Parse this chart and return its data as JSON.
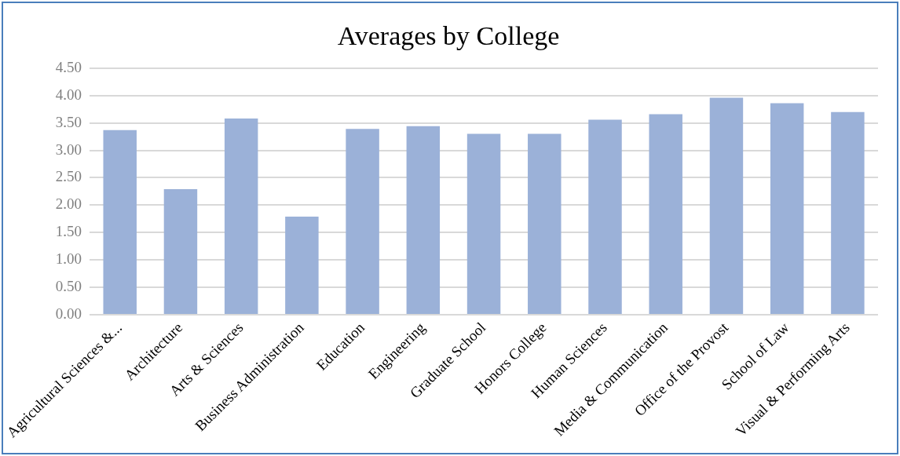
{
  "chart_data": {
    "type": "bar",
    "title": "Averages by College",
    "categories": [
      "Agricultural Sciences &...",
      "Architecture",
      "Arts & Sciences",
      "Business Administration",
      "Education",
      "Engineering",
      "Graduate School",
      "Honors College",
      "Human Sciences",
      "Media & Communication",
      "Office of the Provost",
      "School of Law",
      "Visual & Performing Arts"
    ],
    "values": [
      3.37,
      2.29,
      3.58,
      1.79,
      3.39,
      3.44,
      3.3,
      3.3,
      3.56,
      3.66,
      3.96,
      3.86,
      3.7
    ],
    "color": "#9bb1d8",
    "ylim": [
      0,
      4.5
    ],
    "yticks": [
      {
        "value": 0,
        "label": "0.00"
      },
      {
        "value": 0.5,
        "label": "0.50"
      },
      {
        "value": 1,
        "label": "1.00"
      },
      {
        "value": 1.5,
        "label": "1.50"
      },
      {
        "value": 2,
        "label": "2.00"
      },
      {
        "value": 2.5,
        "label": "2.50"
      },
      {
        "value": 3,
        "label": "3.00"
      },
      {
        "value": 3.5,
        "label": "3.50"
      },
      {
        "value": 4,
        "label": "4.00"
      },
      {
        "value": 4.5,
        "label": "4.50"
      }
    ],
    "grid": "y",
    "legend": false
  }
}
